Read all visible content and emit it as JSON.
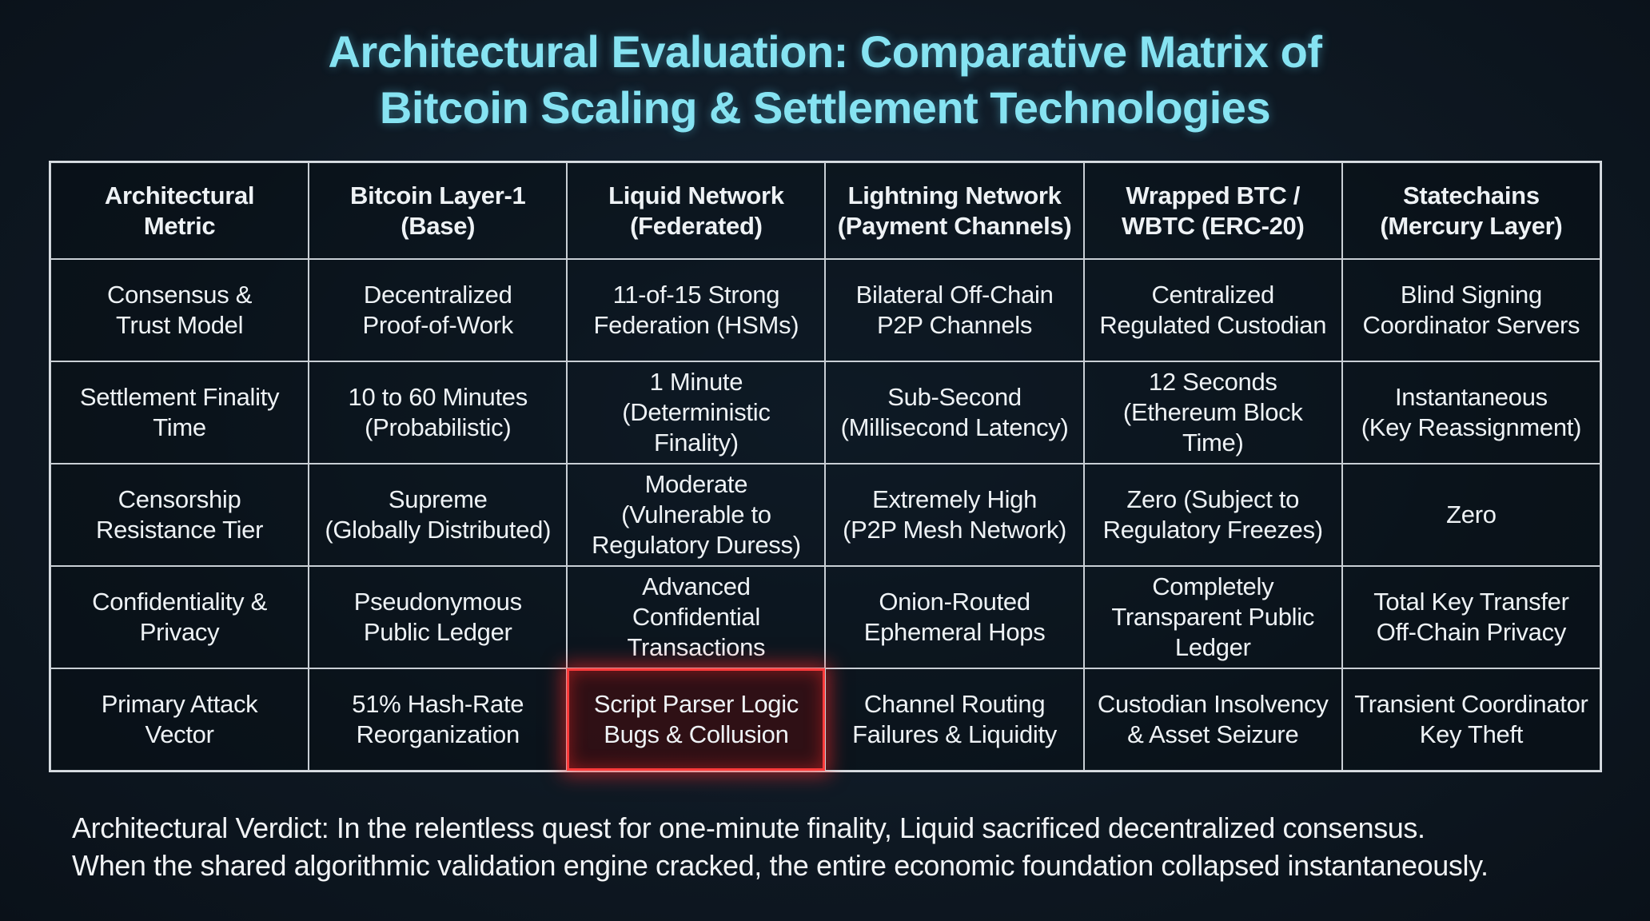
{
  "title": "Architectural Evaluation: Comparative Matrix of\nBitcoin Scaling & Settlement Technologies",
  "table": {
    "header": [
      "Architectural\nMetric",
      "Bitcoin Layer-1\n(Base)",
      "Liquid Network\n(Federated)",
      "Lightning Network\n(Payment Channels)",
      "Wrapped BTC /\nWBTC (ERC-20)",
      "Statechains\n(Mercury Layer)"
    ],
    "rows": [
      [
        "Consensus &\nTrust Model",
        "Decentralized\nProof-of-Work",
        "11-of-15 Strong\nFederation (HSMs)",
        "Bilateral Off-Chain\nP2P Channels",
        "Centralized\nRegulated Custodian",
        "Blind Signing\nCoordinator Servers"
      ],
      [
        "Settlement Finality\nTime",
        "10 to 60 Minutes\n(Probabilistic)",
        "1 Minute\n(Deterministic\nFinality)",
        "Sub-Second\n(Millisecond Latency)",
        "12 Seconds\n(Ethereum Block\nTime)",
        "Instantaneous\n(Key Reassignment)"
      ],
      [
        "Censorship\nResistance Tier",
        "Supreme\n(Globally Distributed)",
        "Moderate\n(Vulnerable to\nRegulatory Duress)",
        "Extremely High\n(P2P Mesh Network)",
        "Zero (Subject to\nRegulatory Freezes)",
        "Zero"
      ],
      [
        "Confidentiality &\nPrivacy",
        "Pseudonymous\nPublic Ledger",
        "Advanced\nConfidential\nTransactions",
        "Onion-Routed\nEphemeral Hops",
        "Completely\nTransparent Public\nLedger",
        "Total Key Transfer\nOff-Chain Privacy"
      ],
      [
        "Primary Attack\nVector",
        "51% Hash-Rate\nReorganization",
        "Script Parser Logic\nBugs & Collusion",
        "Channel Routing\nFailures & Liquidity",
        "Custodian Insolvency\n& Asset Seizure",
        "Transient Coordinator\nKey Theft"
      ]
    ]
  },
  "verdict": "Architectural Verdict: In the relentless quest for one-minute finality, Liquid sacrificed decentralized consensus.\nWhen the shared algorithmic validation engine cracked, the entire economic foundation collapsed instantaneously."
}
